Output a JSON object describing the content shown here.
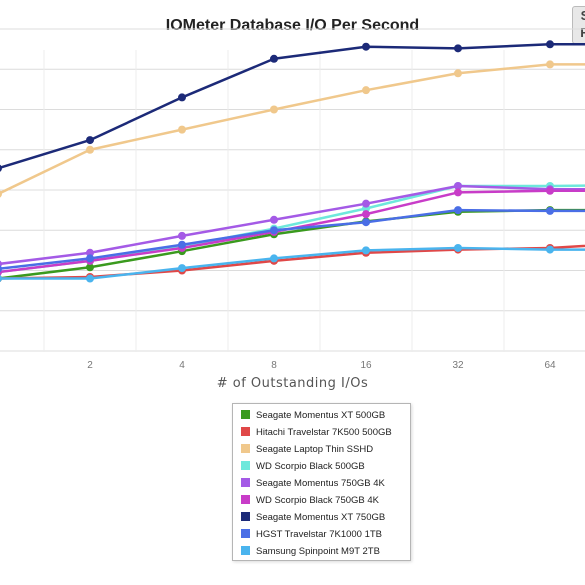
{
  "chart_data": {
    "type": "line",
    "title": "IOMeter Database I/O Per Second",
    "xlabel": "# of Outstanding I/Os",
    "ylabel": "",
    "x": [
      1,
      2,
      4,
      8,
      16,
      32,
      64,
      128
    ],
    "x_tick_labels": [
      "2",
      "4",
      "8",
      "16",
      "32",
      "64"
    ],
    "ylim": [
      0,
      400
    ],
    "y_gridlines": [
      0,
      50,
      100,
      150,
      200,
      250,
      300,
      350,
      400
    ],
    "grid": true,
    "legend_placement": "bottom",
    "series": [
      {
        "name": "Seagate Momentus XT 500GB",
        "color": "#3a9a1e",
        "values": [
          90,
          104,
          124,
          145,
          161,
          173,
          175,
          175
        ]
      },
      {
        "name": "Hitachi Travelstar 7K500 500GB",
        "color": "#e04848",
        "values": [
          90,
          92,
          100,
          112,
          122,
          126,
          128,
          135
        ]
      },
      {
        "name": "Seagate Laptop Thin SSHD",
        "color": "#f0c88c",
        "values": [
          195,
          250,
          275,
          300,
          324,
          345,
          356,
          356
        ]
      },
      {
        "name": "WD Scorpio Black 500GB",
        "color": "#6ee8dc",
        "values": [
          98,
          112,
          130,
          152,
          177,
          205,
          205,
          206
        ]
      },
      {
        "name": "Seagate Momentus 750GB 4K",
        "color": "#a45ae6",
        "values": [
          108,
          122,
          143,
          163,
          183,
          205,
          201,
          201
        ]
      },
      {
        "name": "WD Scorpio Black 750GB 4K",
        "color": "#c83cc8",
        "values": [
          98,
          112,
          128,
          148,
          170,
          197,
          199,
          199
        ]
      },
      {
        "name": "Seagate Momentus XT 750GB",
        "color": "#1c2a78",
        "values": [
          227,
          262,
          315,
          363,
          378,
          376,
          381,
          381
        ]
      },
      {
        "name": "HGST Travelstar 7K1000 1TB",
        "color": "#4a6ee6",
        "values": [
          102,
          115,
          132,
          150,
          160,
          175,
          174,
          174
        ]
      },
      {
        "name": "Samsung Spinpoint M9T 2TB",
        "color": "#4ab4ee",
        "values": [
          90,
          90,
          103,
          115,
          125,
          128,
          126,
          126
        ]
      }
    ]
  }
}
